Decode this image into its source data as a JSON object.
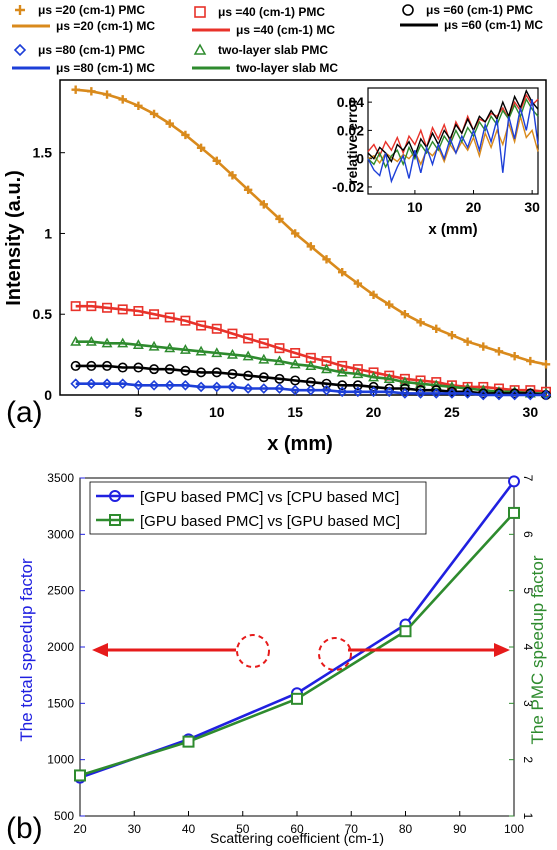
{
  "panel_a_label": "(a)",
  "panel_b_label": "(b)",
  "chart_data": [
    {
      "type": "line",
      "xlabel": "x (mm)",
      "ylabel": "Intensity (a.u.)",
      "xlim": [
        0,
        31
      ],
      "ylim": [
        0,
        1.95
      ],
      "xticks": [
        "5",
        "10",
        "15",
        "20",
        "25",
        "30"
      ],
      "yticks": [
        "0",
        "0.5",
        "1",
        "1.5"
      ],
      "legend": [
        {
          "label": "μs =20 (cm-1) PMC",
          "marker": "plus",
          "color": "#d98a1c"
        },
        {
          "label": "μs =20 (cm-1) MC",
          "marker": "line",
          "color": "#d98a1c"
        },
        {
          "label": "μs =40 (cm-1) PMC",
          "marker": "square",
          "color": "#e8322a"
        },
        {
          "label": "μs =40 (cm-1) MC",
          "marker": "line",
          "color": "#e8322a"
        },
        {
          "label": "μs =60 (cm-1) PMC",
          "marker": "circle",
          "color": "#000000"
        },
        {
          "label": "μs =60 (cm-1) MC",
          "marker": "line",
          "color": "#000000"
        },
        {
          "label": "μs =80 (cm-1) PMC",
          "marker": "diamond",
          "color": "#1d3fd8"
        },
        {
          "label": "μs =80 (cm-1) MC",
          "marker": "line",
          "color": "#1d3fd8"
        },
        {
          "label": "two-layer slab PMC",
          "marker": "triangle",
          "color": "#2e8b2e"
        },
        {
          "label": "two-layer slab MC",
          "marker": "line",
          "color": "#2e8b2e"
        }
      ],
      "x": [
        1,
        2,
        3,
        4,
        5,
        6,
        7,
        8,
        9,
        10,
        11,
        12,
        13,
        14,
        15,
        16,
        17,
        18,
        19,
        20,
        21,
        22,
        23,
        24,
        25,
        26,
        27,
        28,
        29,
        30,
        31
      ],
      "series": [
        {
          "name": "μs =20 (cm-1)",
          "color": "#d98a1c",
          "marker": "plus",
          "values": [
            1.89,
            1.88,
            1.86,
            1.83,
            1.79,
            1.74,
            1.68,
            1.61,
            1.53,
            1.45,
            1.36,
            1.27,
            1.18,
            1.09,
            1.0,
            0.92,
            0.84,
            0.76,
            0.69,
            0.62,
            0.56,
            0.5,
            0.45,
            0.41,
            0.37,
            0.33,
            0.3,
            0.27,
            0.24,
            0.21,
            0.19
          ]
        },
        {
          "name": "μs =40 (cm-1)",
          "color": "#e8322a",
          "marker": "square",
          "values": [
            0.55,
            0.55,
            0.54,
            0.53,
            0.52,
            0.5,
            0.48,
            0.46,
            0.43,
            0.41,
            0.38,
            0.35,
            0.32,
            0.29,
            0.26,
            0.23,
            0.21,
            0.18,
            0.16,
            0.14,
            0.12,
            0.1,
            0.09,
            0.08,
            0.06,
            0.05,
            0.05,
            0.04,
            0.03,
            0.03,
            0.02
          ]
        },
        {
          "name": "two-layer slab",
          "color": "#2e8b2e",
          "marker": "triangle",
          "values": [
            0.33,
            0.33,
            0.32,
            0.32,
            0.31,
            0.3,
            0.29,
            0.28,
            0.27,
            0.26,
            0.25,
            0.24,
            0.22,
            0.21,
            0.19,
            0.18,
            0.16,
            0.14,
            0.13,
            0.11,
            0.1,
            0.08,
            0.07,
            0.06,
            0.05,
            0.04,
            0.03,
            0.02,
            0.02,
            0.01,
            0.01
          ]
        },
        {
          "name": "μs =60 (cm-1)",
          "color": "#000000",
          "marker": "circle",
          "values": [
            0.18,
            0.18,
            0.18,
            0.17,
            0.17,
            0.16,
            0.16,
            0.15,
            0.14,
            0.14,
            0.13,
            0.12,
            0.11,
            0.1,
            0.09,
            0.08,
            0.07,
            0.06,
            0.06,
            0.05,
            0.04,
            0.04,
            0.03,
            0.03,
            0.02,
            0.02,
            0.01,
            0.01,
            0.01,
            0.01,
            0.0
          ]
        },
        {
          "name": "μs =80 (cm-1)",
          "color": "#1d3fd8",
          "marker": "diamond",
          "values": [
            0.07,
            0.07,
            0.07,
            0.07,
            0.06,
            0.06,
            0.06,
            0.06,
            0.05,
            0.05,
            0.05,
            0.04,
            0.04,
            0.04,
            0.03,
            0.03,
            0.03,
            0.02,
            0.02,
            0.02,
            0.02,
            0.01,
            0.01,
            0.01,
            0.01,
            0.01,
            0.0,
            0.0,
            0.0,
            0.0,
            0.0
          ]
        }
      ],
      "inset": {
        "type": "line",
        "xlabel": "x (mm)",
        "ylabel": "relative error",
        "xlim": [
          2,
          31
        ],
        "ylim": [
          -0.025,
          0.05
        ],
        "xticks": [
          "10",
          "20",
          "30"
        ],
        "yticks": [
          "-0.02",
          "0",
          "0.02",
          "0.04"
        ],
        "x": [
          2,
          3,
          4,
          5,
          6,
          7,
          8,
          9,
          10,
          11,
          12,
          13,
          14,
          15,
          16,
          17,
          18,
          19,
          20,
          21,
          22,
          23,
          24,
          25,
          26,
          27,
          28,
          29,
          30,
          31
        ],
        "series": [
          {
            "color": "#d98a1c",
            "values": [
              0.0,
              0.002,
              -0.003,
              0.004,
              0.001,
              -0.002,
              0.003,
              0.0,
              0.005,
              -0.004,
              0.006,
              0.002,
              0.008,
              -0.002,
              0.01,
              0.004,
              0.012,
              0.006,
              0.015,
              0.002,
              0.018,
              0.008,
              0.02,
              0.01,
              0.025,
              0.012,
              0.03,
              0.015,
              0.02,
              0.005
            ]
          },
          {
            "color": "#e8322a",
            "values": [
              0.005,
              0.01,
              0.002,
              0.012,
              0.006,
              0.015,
              0.004,
              0.016,
              0.01,
              0.02,
              0.008,
              0.022,
              0.014,
              0.024,
              0.012,
              0.026,
              0.018,
              0.03,
              0.02,
              0.028,
              0.026,
              0.032,
              0.03,
              0.036,
              0.028,
              0.04,
              0.034,
              0.045,
              0.038,
              0.042
            ]
          },
          {
            "color": "#2e8b2e",
            "values": [
              0.0,
              -0.004,
              0.004,
              -0.006,
              0.002,
              0.006,
              -0.004,
              0.008,
              0.0,
              0.01,
              0.004,
              0.012,
              0.006,
              0.016,
              0.01,
              0.02,
              0.012,
              0.022,
              0.016,
              0.026,
              0.02,
              0.03,
              0.024,
              0.034,
              0.028,
              0.038,
              0.03,
              0.042,
              0.035,
              0.03
            ]
          },
          {
            "color": "#000000",
            "values": [
              0.004,
              0.0,
              0.008,
              0.004,
              -0.002,
              0.01,
              0.006,
              0.012,
              0.002,
              0.014,
              0.008,
              0.018,
              0.01,
              0.02,
              0.014,
              0.024,
              0.018,
              0.028,
              0.02,
              0.03,
              0.026,
              0.034,
              0.028,
              0.04,
              0.03,
              0.044,
              0.036,
              0.048,
              0.04,
              0.035
            ]
          },
          {
            "color": "#1d3fd8",
            "values": [
              0.0,
              -0.008,
              -0.012,
              0.004,
              -0.016,
              -0.006,
              0.002,
              -0.014,
              0.006,
              -0.01,
              0.008,
              -0.004,
              0.01,
              0.0,
              0.014,
              0.004,
              0.016,
              0.008,
              0.02,
              0.006,
              0.024,
              0.012,
              0.028,
              -0.01,
              0.03,
              0.014,
              0.036,
              0.02,
              0.042,
              0.01
            ]
          }
        ]
      }
    },
    {
      "type": "line",
      "xlabel": "Scattering coefficient (cm-1)",
      "ylabel": "The total speedup factor",
      "y2label": "The PMC speedup factor",
      "xlim": [
        20,
        100
      ],
      "ylim": [
        500,
        3500
      ],
      "y2lim": [
        1,
        7
      ],
      "xticks": [
        "20",
        "30",
        "40",
        "50",
        "60",
        "70",
        "80",
        "90",
        "100"
      ],
      "yticks": [
        "500",
        "1000",
        "1500",
        "2000",
        "2500",
        "3000",
        "3500"
      ],
      "y2ticks": [
        "1",
        "2",
        "3",
        "4",
        "5",
        "6",
        "7"
      ],
      "grid": false,
      "legend_position": "top-left",
      "x": [
        20,
        40,
        60,
        80,
        100
      ],
      "series": [
        {
          "name": "[GPU based PMC] vs [CPU based MC]",
          "color": "#2020e0",
          "marker": "circle",
          "axis": "left",
          "values": [
            840,
            1180,
            1590,
            2200,
            3470
          ]
        },
        {
          "name": "[GPU based PMC] vs [GPU based MC]",
          "color": "#2e8b2e",
          "marker": "square",
          "axis": "right",
          "values": [
            1.72,
            2.32,
            3.08,
            4.28,
            6.38
          ]
        }
      ]
    }
  ]
}
